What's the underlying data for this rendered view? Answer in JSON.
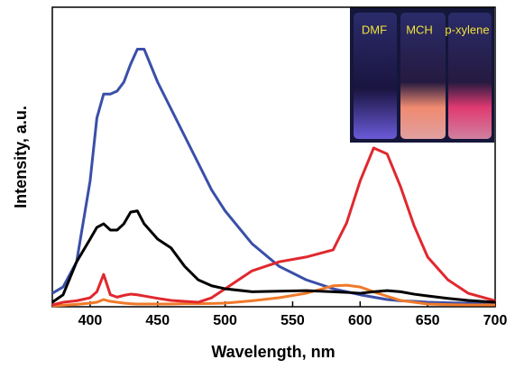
{
  "chart_data": {
    "type": "line",
    "x_label": "Wavelength, nm",
    "y_label": "Intensity, a.u.",
    "x": [
      372,
      380,
      390,
      400,
      405,
      410,
      415,
      420,
      425,
      430,
      435,
      440,
      450,
      460,
      470,
      480,
      490,
      500,
      520,
      540,
      560,
      580,
      590,
      600,
      610,
      620,
      630,
      640,
      650,
      665,
      680,
      700
    ],
    "series": [
      {
        "name": "DMF",
        "color": "#3a4fa8",
        "values": [
          4.5,
          6.6,
          15,
          42,
          63,
          71,
          71,
          72,
          75,
          81,
          86,
          86,
          75,
          66,
          57,
          48,
          39,
          32,
          21,
          13.5,
          9,
          6,
          5,
          4,
          3.2,
          2.4,
          2,
          1.8,
          1.5,
          1.3,
          1.2,
          1.2
        ]
      },
      {
        "name": "MCH",
        "color": "#f07a2a",
        "values": [
          0.3,
          0.5,
          0.8,
          1.2,
          1.5,
          2.4,
          1.8,
          1.5,
          1.2,
          1,
          0.9,
          0.9,
          0.9,
          0.9,
          1,
          1,
          1.1,
          1.2,
          2,
          3,
          4.5,
          7,
          7.2,
          6.6,
          5,
          3.5,
          2.1,
          1.5,
          0.9,
          0.7,
          0.6,
          0.6
        ]
      },
      {
        "name": "p-xylene",
        "color": "#e0282e",
        "values": [
          0.6,
          1.5,
          2,
          3,
          5,
          10.8,
          4,
          3.2,
          3.8,
          4.2,
          4,
          3.6,
          2.8,
          2.1,
          1.8,
          1.5,
          3,
          6,
          12,
          15,
          16.6,
          19,
          28,
          42,
          53,
          51,
          40,
          27,
          16.6,
          9,
          4.5,
          2
        ]
      },
      {
        "color": "#000000",
        "values": [
          1.5,
          4,
          15,
          22.6,
          26.5,
          27.7,
          25.6,
          25.6,
          27.7,
          31.6,
          32,
          27.7,
          22.6,
          19.6,
          13.5,
          9,
          7,
          6,
          5,
          5.2,
          5.4,
          5,
          4.8,
          4.5,
          5,
          5.4,
          5,
          4.2,
          3.6,
          2.8,
          2.1,
          1.5
        ]
      }
    ],
    "xlim": [
      372,
      700
    ],
    "ylim": [
      0,
      100
    ],
    "xticks": [
      400,
      450,
      500,
      550,
      600,
      650,
      700
    ],
    "inset_labels": [
      "DMF",
      "MCH",
      "p-xylene"
    ]
  }
}
